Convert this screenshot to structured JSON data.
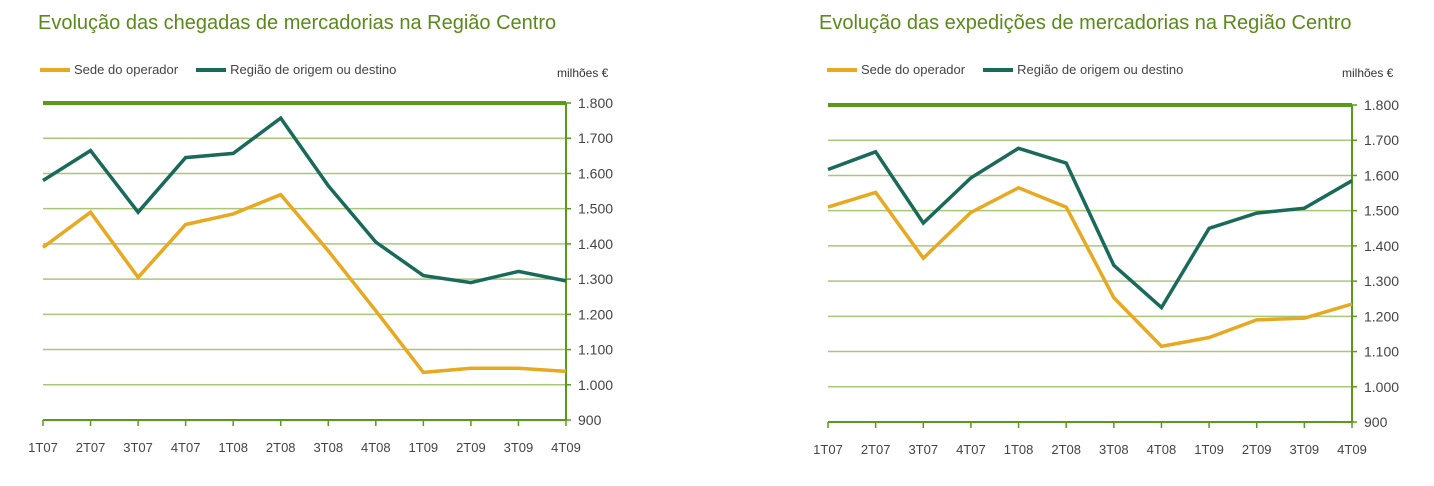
{
  "colors": {
    "title": "#5a8a1a",
    "axis": "#5a9a1a",
    "grid": "#a8c878",
    "text": "#444444"
  },
  "chart_data": [
    {
      "type": "line",
      "title": "Evolução das chegadas de mercadorias na Região Centro",
      "unit": "milhões €",
      "categories": [
        "1T07",
        "2T07",
        "3T07",
        "4T07",
        "1T08",
        "2T08",
        "3T08",
        "4T08",
        "1T09",
        "2T09",
        "3T09",
        "4T09"
      ],
      "y_ticks": [
        "900",
        "1.000",
        "1.100",
        "1.200",
        "1.300",
        "1.400",
        "1.500",
        "1.600",
        "1.700",
        "1.800"
      ],
      "ylim": [
        900,
        1800
      ],
      "grid": true,
      "legend_position": "top-left",
      "series": [
        {
          "name": "Sede do operador",
          "color": "#e8a820",
          "values": [
            1390,
            1490,
            1305,
            1455,
            1485,
            1540,
            1380,
            1210,
            1035,
            1047,
            1047,
            1038
          ]
        },
        {
          "name": "Região de origem ou destino",
          "color": "#1a6a5a",
          "values": [
            1580,
            1665,
            1490,
            1645,
            1657,
            1757,
            1565,
            1405,
            1310,
            1290,
            1322,
            1295
          ]
        }
      ]
    },
    {
      "type": "line",
      "title": "Evolução das expedições de mercadorias na Região Centro",
      "unit": "milhões €",
      "categories": [
        "1T07",
        "2T07",
        "3T07",
        "4T07",
        "1T08",
        "2T08",
        "3T08",
        "4T08",
        "1T09",
        "2T09",
        "3T09",
        "4T09"
      ],
      "y_ticks": [
        "900",
        "1.000",
        "1.100",
        "1.200",
        "1.300",
        "1.400",
        "1.500",
        "1.600",
        "1.700",
        "1.800"
      ],
      "ylim": [
        900,
        1800
      ],
      "grid": true,
      "legend_position": "top-left",
      "series": [
        {
          "name": "Sede do operador",
          "color": "#e8a820",
          "values": [
            1510,
            1552,
            1365,
            1495,
            1565,
            1510,
            1253,
            1115,
            1140,
            1190,
            1195,
            1235
          ]
        },
        {
          "name": "Região de origem ou destino",
          "color": "#1a6a5a",
          "values": [
            1617,
            1667,
            1465,
            1593,
            1677,
            1635,
            1345,
            1225,
            1450,
            1493,
            1507,
            1585
          ]
        }
      ]
    }
  ]
}
